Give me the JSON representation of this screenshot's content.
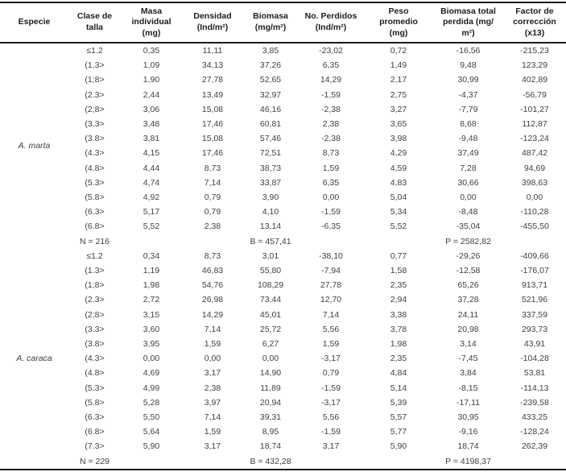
{
  "colors": {
    "rule": "#1c1c1c",
    "header_text": "#1c1c1c",
    "body_text": "#3f3f3f"
  },
  "table": {
    "columns": [
      {
        "id": "especie",
        "label": "Especie"
      },
      {
        "id": "clase",
        "label": "Clase de\ntalla"
      },
      {
        "id": "masa",
        "label": "Masa individual\n(mg)"
      },
      {
        "id": "densidad",
        "label": "Densidad\n(Ind/m²)"
      },
      {
        "id": "biomasa",
        "label": "Biomasa\n(mg/m²)"
      },
      {
        "id": "perdidos",
        "label": "No. Perdidos\n(Ind/m²)"
      },
      {
        "id": "peso",
        "label": "Peso\npromedio\n(mg)"
      },
      {
        "id": "btotal",
        "label": "Biomasa total\nperdida (mg/\nm²)"
      },
      {
        "id": "factor",
        "label": "Factor de\ncorrección\n(x13)"
      }
    ],
    "sections": [
      {
        "species": "A. marta",
        "rows": [
          [
            "≤1.2",
            "0,35",
            "11,11",
            "3,85",
            "-23,02",
            "0,72",
            "-16,56",
            "-215,23"
          ],
          [
            "(1.3>",
            "1,09",
            "34,13",
            "37,26",
            "6,35",
            "1,49",
            "9,48",
            "123,29"
          ],
          [
            "(1;8>",
            "1,90",
            "27,78",
            "52,65",
            "14,29",
            "2,17",
            "30,99",
            "402,89"
          ],
          [
            "(2.3>",
            "2,44",
            "13,49",
            "32,97",
            "-1,59",
            "2,75",
            "-4,37",
            "-56,79"
          ],
          [
            "(2;8>",
            "3,06",
            "15,08",
            "46,16",
            "-2,38",
            "3,27",
            "-7,79",
            "-101,27"
          ],
          [
            "(3.3>",
            "3,48",
            "17,46",
            "60,81",
            "2,38",
            "3,65",
            "8,68",
            "112,87"
          ],
          [
            "(3.8>",
            "3,81",
            "15,08",
            "57,46",
            "-2,38",
            "3,98",
            "-9,48",
            "-123,24"
          ],
          [
            "(4.3>",
            "4,15",
            "17,46",
            "72,51",
            "8,73",
            "4,29",
            "37,49",
            "487,42"
          ],
          [
            "(4.8>",
            "4,44",
            "8,73",
            "38,73",
            "1,59",
            "4,59",
            "7,28",
            "94,69"
          ],
          [
            "(5.3>",
            "4,74",
            "7,14",
            "33,87",
            "6,35",
            "4,83",
            "30,66",
            "398,63"
          ],
          [
            "(5.8>",
            "4,92",
            "0,79",
            "3,90",
            "0,00",
            "5,04",
            "0,00",
            "0,00"
          ],
          [
            "(6.3>",
            "5,17",
            "0,79",
            "4,10",
            "-1,59",
            "5,34",
            "-8,48",
            "-110,28"
          ],
          [
            "(6.8>",
            "5,52",
            "2,38",
            "13,14",
            "-6,35",
            "5,52",
            "-35,04",
            "-455,50"
          ]
        ],
        "summary": {
          "n": "N = 216",
          "b": "B = 457,41",
          "p": "P = 2582,82"
        }
      },
      {
        "species": "A. caraca",
        "rows": [
          [
            "≤1.2",
            "0,34",
            "8,73",
            "3,01",
            "-38,10",
            "0,77",
            "-29,26",
            "-409,66"
          ],
          [
            "(1.3>",
            "1,19",
            "46,83",
            "55,80",
            "-7,94",
            "1,58",
            "-12,58",
            "-176,07"
          ],
          [
            "(1;8>",
            "1,98",
            "54,76",
            "108,29",
            "27,78",
            "2,35",
            "65,26",
            "913,71"
          ],
          [
            "(2.3>",
            "2,72",
            "26,98",
            "73,44",
            "12,70",
            "2,94",
            "37,28",
            "521,96"
          ],
          [
            "(2;8>",
            "3,15",
            "14,29",
            "45,01",
            "7,14",
            "3,38",
            "24,11",
            "337,59"
          ],
          [
            "(3.3>",
            "3,60",
            "7,14",
            "25,72",
            "5,56",
            "3,78",
            "20,98",
            "293,73"
          ],
          [
            "(3.8>",
            "3,95",
            "1,59",
            "6,27",
            "1,59",
            "1,98",
            "3,14",
            "43,91"
          ],
          [
            "(4.3>",
            "0,00",
            "0,00",
            "0,00",
            "-3,17",
            "2,35",
            "-7,45",
            "-104,28"
          ],
          [
            "(4.8>",
            "4,69",
            "3,17",
            "14,90",
            "0,79",
            "4,84",
            "3,84",
            "53,81"
          ],
          [
            "(5.3>",
            "4,99",
            "2,38",
            "11,89",
            "-1,59",
            "5,14",
            "-8,15",
            "-114,13"
          ],
          [
            "(5.8>",
            "5,28",
            "3,97",
            "20,94",
            "-3,17",
            "5,39",
            "-17,11",
            "-239,58"
          ],
          [
            "(6.3>",
            "5,50",
            "7,14",
            "39,31",
            "5,56",
            "5,57",
            "30,95",
            "433,25"
          ],
          [
            "(6.8>",
            "5,64",
            "1,59",
            "8,95",
            "-1,59",
            "5,77",
            "-9,16",
            "-128,24"
          ],
          [
            "(7.3>",
            "5,90",
            "3,17",
            "18,74",
            "3,17",
            "5,90",
            "18,74",
            "262,39"
          ]
        ],
        "summary": {
          "n": "N = 229",
          "b": "B = 432,28",
          "p": "P = 4198,37"
        }
      }
    ]
  }
}
